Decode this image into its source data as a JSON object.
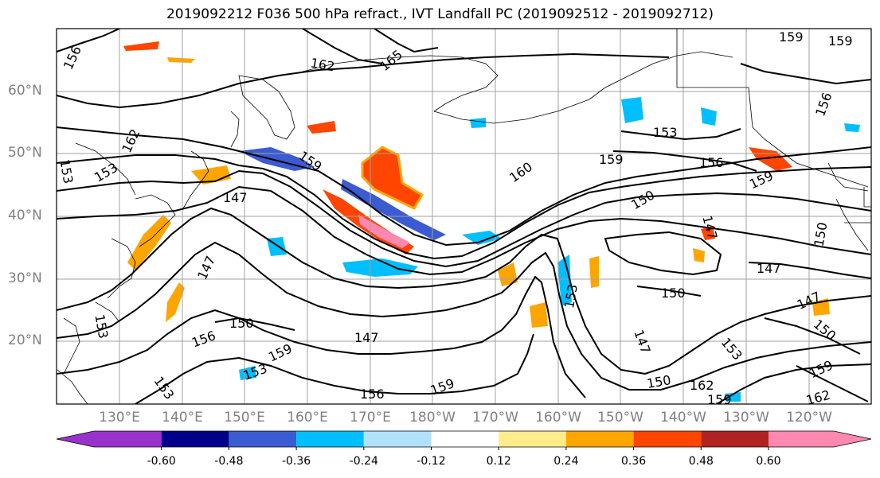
{
  "title": "2019092212 F036 500 hPa refract., IVT Landfall PC (2019092512 - 2019092712)",
  "lat_labels": [
    "60°N",
    "50°N",
    "40°N",
    "30°N",
    "20°N"
  ],
  "lon_labels": [
    "130°E",
    "140°E",
    "150°E",
    "160°E",
    "170°E",
    "180°W",
    "170°W",
    "160°W",
    "150°W",
    "140°W",
    "130°W",
    "120°W"
  ],
  "colorbar": {
    "colors": [
      "#9932cc",
      "#00008b",
      "#3a5bd1",
      "#00bfff",
      "#b0e2ff",
      "#ffffff",
      "#ffec8b",
      "#ffa500",
      "#ff4500",
      "#b22222",
      "#ff88b0"
    ],
    "tick_labels": [
      "-0.60",
      "-0.48",
      "-0.36",
      "-0.24",
      "-0.12",
      "0.12",
      "0.24",
      "0.36",
      "0.48",
      "0.60"
    ]
  },
  "contour_labels": [
    "156",
    "162",
    "165",
    "159",
    "159",
    "153",
    "159",
    "156",
    "159",
    "162",
    "153",
    "153",
    "147",
    "159",
    "160",
    "150",
    "150",
    "147",
    "147",
    "150",
    "147",
    "147",
    "153",
    "156",
    "150",
    "159",
    "153",
    "153",
    "147",
    "156",
    "159",
    "150",
    "162",
    "159",
    "162",
    "159",
    "156",
    "153",
    "147",
    "153",
    "150"
  ],
  "colors": {
    "contour": "#000000",
    "grid": "#808080",
    "axis_label": "#808080"
  }
}
